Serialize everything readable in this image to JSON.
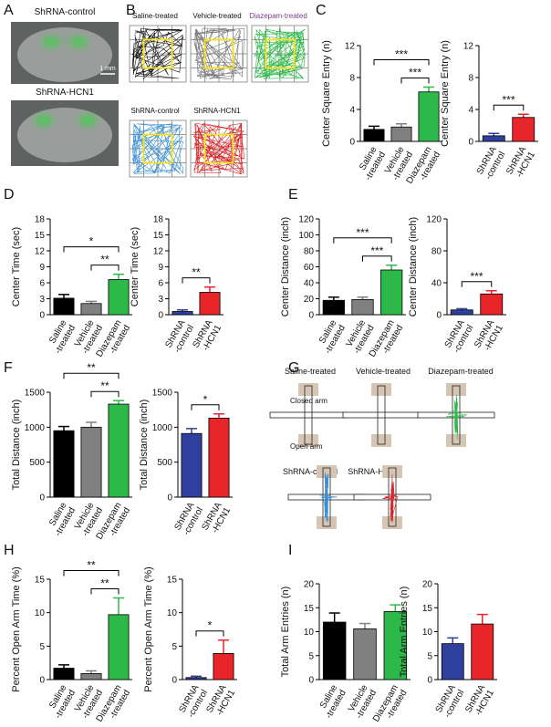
{
  "figure": {
    "panel_labels": [
      "A",
      "B",
      "C",
      "D",
      "E",
      "F",
      "G",
      "H",
      "I"
    ],
    "A": {
      "captions": [
        "ShRNA-control",
        "ShRNA-HCN1"
      ],
      "scale": "1 mm"
    },
    "B": {
      "captions": [
        "Saline-treated",
        "Vehicle-treated",
        "Diazepam-treated",
        "ShRNA-control",
        "ShRNA-HCN1"
      ]
    },
    "G": {
      "captions": [
        "Saline-treated",
        "Vehicle-treated",
        "Diazepam-treated",
        "ShRNA-control",
        "ShRNA-HCN1"
      ],
      "arm_labels": [
        "Closed arm",
        "Open arm"
      ]
    }
  },
  "chart_data": [
    {
      "type": "bar",
      "y_label": "Center Square Entry (n)",
      "categories": [
        [
          "Saline",
          "-treated"
        ],
        [
          "Vehicle",
          "-treated"
        ],
        [
          "Diazepam",
          "-treated"
        ]
      ],
      "values": [
        1.5,
        1.8,
        6.2
      ],
      "errors": [
        0.4,
        0.4,
        0.6
      ],
      "colors": [
        "#000000",
        "#808080",
        "#2db84a"
      ],
      "ylim": [
        0,
        12
      ],
      "yticks": [
        0,
        4,
        8,
        12
      ],
      "comparisons": [
        {
          "label": "***",
          "pair": [
            0,
            2
          ]
        },
        {
          "label": "***",
          "pair": [
            1,
            2
          ]
        }
      ]
    },
    {
      "type": "bar",
      "y_label": "Center Square Entry (n)",
      "categories": [
        [
          "ShRNA",
          "-control"
        ],
        [
          "ShRNA",
          "-HCN1"
        ]
      ],
      "values": [
        0.7,
        3.0
      ],
      "errors": [
        0.3,
        0.4
      ],
      "colors": [
        "#2e3f9e",
        "#e8262a"
      ],
      "ylim": [
        0,
        12
      ],
      "yticks": [
        0,
        4,
        8,
        12
      ],
      "comparisons": [
        {
          "label": "***",
          "pair": [
            0,
            1
          ]
        }
      ]
    },
    {
      "type": "bar",
      "y_label": "Center Time (sec)",
      "categories": [
        [
          "Saline",
          "-treated"
        ],
        [
          "Vehicle",
          "-treated"
        ],
        [
          "Diazepam",
          "-treated"
        ]
      ],
      "values": [
        3.1,
        2.1,
        6.6
      ],
      "errors": [
        0.7,
        0.4,
        1.0
      ],
      "colors": [
        "#000000",
        "#808080",
        "#2db84a"
      ],
      "ylim": [
        0,
        18
      ],
      "yticks": [
        0,
        3,
        6,
        9,
        12,
        15,
        18
      ],
      "comparisons": [
        {
          "label": "*",
          "pair": [
            0,
            2
          ]
        },
        {
          "label": "**",
          "pair": [
            1,
            2
          ]
        }
      ]
    },
    {
      "type": "bar",
      "y_label": "Center Time (sec)",
      "categories": [
        [
          "ShRNA",
          "-control"
        ],
        [
          "ShRNA",
          "-HCN1"
        ]
      ],
      "values": [
        0.6,
        4.2
      ],
      "errors": [
        0.3,
        1.0
      ],
      "colors": [
        "#2e3f9e",
        "#e8262a"
      ],
      "ylim": [
        0,
        18
      ],
      "yticks": [
        0,
        3,
        6,
        9,
        12,
        15,
        18
      ],
      "comparisons": [
        {
          "label": "**",
          "pair": [
            0,
            1
          ]
        }
      ]
    },
    {
      "type": "bar",
      "y_label": "Center Distance (inch)",
      "categories": [
        [
          "Saline",
          "-treated"
        ],
        [
          "Vehicle",
          "-treated"
        ],
        [
          "Diazepam",
          "-treated"
        ]
      ],
      "values": [
        18,
        19,
        56
      ],
      "errors": [
        4,
        3,
        6
      ],
      "colors": [
        "#000000",
        "#808080",
        "#2db84a"
      ],
      "ylim": [
        0,
        120
      ],
      "yticks": [
        0,
        20,
        40,
        60,
        80,
        100,
        120
      ],
      "comparisons": [
        {
          "label": "***",
          "pair": [
            0,
            2
          ]
        },
        {
          "label": "***",
          "pair": [
            1,
            2
          ]
        }
      ]
    },
    {
      "type": "bar",
      "y_label": "Center Distance (inch)",
      "categories": [
        [
          "ShRNA",
          "-control"
        ],
        [
          "ShRNA",
          "-HCN1"
        ]
      ],
      "values": [
        6,
        26
      ],
      "errors": [
        1.5,
        4
      ],
      "colors": [
        "#2e3f9e",
        "#e8262a"
      ],
      "ylim": [
        0,
        120
      ],
      "yticks": [
        0,
        40,
        80,
        120
      ],
      "comparisons": [
        {
          "label": "***",
          "pair": [
            0,
            1
          ]
        }
      ]
    },
    {
      "type": "bar",
      "y_label": "Total Distance (inch)",
      "categories": [
        [
          "Saline",
          "-treated"
        ],
        [
          "Vehicle",
          "-treated"
        ],
        [
          "Diazepam",
          "-treated"
        ]
      ],
      "values": [
        950,
        1000,
        1330
      ],
      "errors": [
        60,
        70,
        50
      ],
      "colors": [
        "#000000",
        "#808080",
        "#2db84a"
      ],
      "ylim": [
        0,
        1500
      ],
      "yticks": [
        0,
        500,
        1000,
        1500
      ],
      "comparisons": [
        {
          "label": "**",
          "pair": [
            0,
            2
          ]
        },
        {
          "label": "**",
          "pair": [
            1,
            2
          ]
        }
      ]
    },
    {
      "type": "bar",
      "y_label": "Total Distance (inch)",
      "categories": [
        [
          "ShRNA",
          "-control"
        ],
        [
          "ShRNA",
          "-HCN1"
        ]
      ],
      "values": [
        910,
        1130
      ],
      "errors": [
        70,
        60
      ],
      "colors": [
        "#2e3f9e",
        "#e8262a"
      ],
      "ylim": [
        0,
        1500
      ],
      "yticks": [
        0,
        500,
        1000,
        1500
      ],
      "comparisons": [
        {
          "label": "*",
          "pair": [
            0,
            1
          ]
        }
      ]
    },
    {
      "type": "bar",
      "y_label": "Percent Open Arm Time (%)",
      "categories": [
        [
          "Saline",
          "-treated"
        ],
        [
          "Vehicle",
          "-treated"
        ],
        [
          "Diazepam",
          "-treated"
        ]
      ],
      "values": [
        1.7,
        0.9,
        9.7
      ],
      "errors": [
        0.5,
        0.4,
        2.5
      ],
      "colors": [
        "#000000",
        "#808080",
        "#2db84a"
      ],
      "ylim": [
        0,
        15
      ],
      "yticks": [
        0,
        5,
        10,
        15
      ],
      "comparisons": [
        {
          "label": "**",
          "pair": [
            0,
            2
          ]
        },
        {
          "label": "**",
          "pair": [
            1,
            2
          ]
        }
      ]
    },
    {
      "type": "bar",
      "y_label": "Percent Open Arm Time (%)",
      "categories": [
        [
          "ShRNA",
          "-control"
        ],
        [
          "ShRNA",
          "-HCN1"
        ]
      ],
      "values": [
        0.3,
        3.9
      ],
      "errors": [
        0.2,
        2.0
      ],
      "colors": [
        "#2e3f9e",
        "#e8262a"
      ],
      "ylim": [
        0,
        15
      ],
      "yticks": [
        0,
        5,
        10,
        15
      ],
      "comparisons": [
        {
          "label": "*",
          "pair": [
            0,
            1
          ]
        }
      ]
    },
    {
      "type": "bar",
      "y_label": "Total Arm Entries (n)",
      "categories": [
        [
          "Saline",
          "-treated"
        ],
        [
          "Vehicle",
          "-treated"
        ],
        [
          "Diazepam",
          "-treated"
        ]
      ],
      "values": [
        12,
        10.6,
        14.2
      ],
      "errors": [
        1.9,
        1.1,
        1.4
      ],
      "colors": [
        "#000000",
        "#808080",
        "#2db84a"
      ],
      "ylim": [
        0,
        20
      ],
      "yticks": [
        0,
        5,
        10,
        15,
        20
      ],
      "comparisons": []
    },
    {
      "type": "bar",
      "y_label": "Total Arm Entries (n)",
      "categories": [
        [
          "ShRNA",
          "-control"
        ],
        [
          "ShRNA",
          "-HCN1"
        ]
      ],
      "values": [
        7.5,
        11.6
      ],
      "errors": [
        1.2,
        2.0
      ],
      "colors": [
        "#2e3f9e",
        "#e8262a"
      ],
      "ylim": [
        0,
        20
      ],
      "yticks": [
        0,
        5,
        10,
        15,
        20
      ],
      "comparisons": []
    }
  ]
}
